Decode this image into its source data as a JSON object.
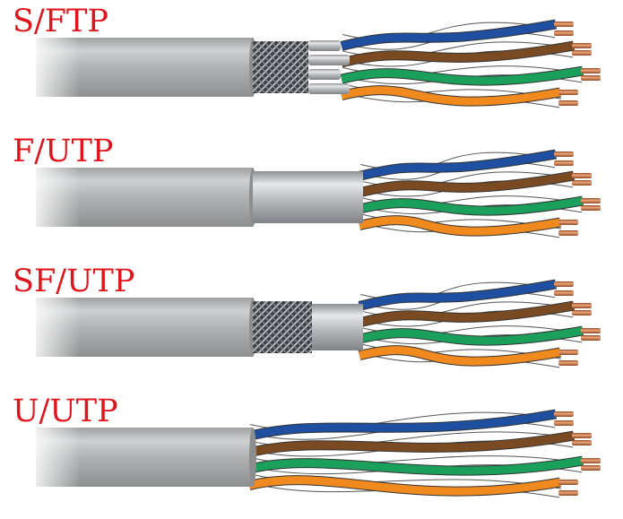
{
  "cables": [
    {
      "label": "S/FTP",
      "jacket_end": 282,
      "layers": [
        "braid",
        "pair-foils"
      ]
    },
    {
      "label": "F/UTP",
      "jacket_end": 282,
      "layers": [
        "foil"
      ]
    },
    {
      "label": "SF/UTP",
      "jacket_end": 282,
      "layers": [
        "braid",
        "foil"
      ]
    },
    {
      "label": "U/UTP",
      "jacket_end": 282,
      "layers": []
    }
  ],
  "colors": {
    "label": "#e0141b",
    "jacket": "#a9aaab",
    "brown": "#7a4a22",
    "blue": "#1f4fa0",
    "orange": "#f08a1e",
    "green": "#1aa05a",
    "white": "#ffffff",
    "copper": "#c8704a"
  }
}
